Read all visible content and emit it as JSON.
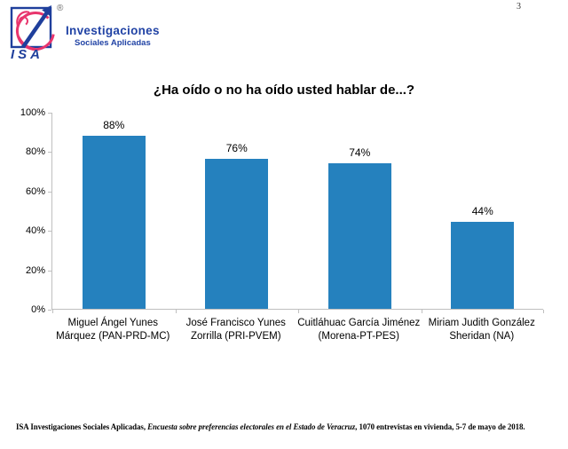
{
  "page": {
    "number": "3"
  },
  "brand": {
    "logo_text": "ISA",
    "registered": "®",
    "line1": "Investigaciones",
    "line2": "Sociales Aplicadas",
    "blue": "#1f3f9c",
    "pink": "#e8356d"
  },
  "chart_data": {
    "type": "bar",
    "title": "¿Ha oído o no ha oído usted hablar de...?",
    "categories": [
      "Miguel Ángel Yunes Márquez (PAN-PRD-MC)",
      "José Francisco Yunes Zorrilla (PRI-PVEM)",
      "Cuitláhuac García Jiménez (Morena-PT-PES)",
      "Miriam Judith González Sheridan (NA)"
    ],
    "categories_lines": [
      [
        "Miguel Ángel Yunes",
        "Márquez (PAN-PRD-MC)"
      ],
      [
        "José Francisco Yunes",
        "Zorrilla (PRI-PVEM)"
      ],
      [
        "Cuitláhuac García Jiménez",
        "(Morena-PT-PES)"
      ],
      [
        "Miriam Judith González",
        "Sheridan (NA)"
      ]
    ],
    "values": [
      88,
      76,
      74,
      44
    ],
    "value_labels": [
      "88%",
      "76%",
      "74%",
      "44%"
    ],
    "ylim": [
      0,
      100
    ],
    "yticks": [
      0,
      20,
      40,
      60,
      80,
      100
    ],
    "ytick_labels": [
      "0%",
      "20%",
      "40%",
      "60%",
      "80%",
      "100%"
    ],
    "xlabel": "",
    "ylabel": "",
    "grid": false,
    "legend": false,
    "bar_color": "#2581be",
    "axis_color": "#bfbfbf"
  },
  "footer": {
    "plain_prefix": "ISA Investigaciones Sociales Aplicadas, ",
    "italic": "Encuesta sobre preferencias electorales en el Estado de Veracruz",
    "plain_suffix": ", 1070 entrevistas en vivienda, 5-7 de mayo de 2018."
  }
}
